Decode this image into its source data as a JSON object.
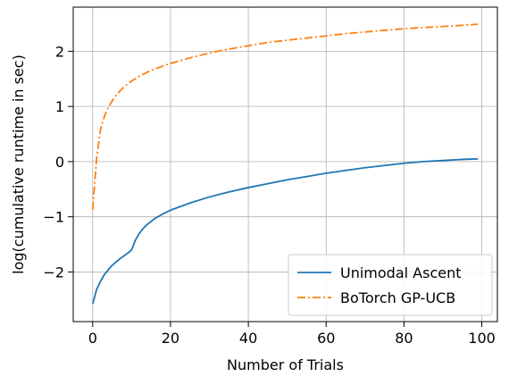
{
  "chart_data": {
    "type": "line",
    "title": "",
    "xlabel": "Number of Trials",
    "ylabel": "log(cumulative runtime in sec)",
    "xlim": [
      -5,
      104
    ],
    "ylim": [
      -2.9,
      2.8
    ],
    "xticks": [
      0,
      20,
      40,
      60,
      80,
      100
    ],
    "yticks": [
      -2,
      -1,
      0,
      1,
      2
    ],
    "xtick_labels": [
      "0",
      "20",
      "40",
      "60",
      "80",
      "100"
    ],
    "ytick_labels": [
      "−2",
      "−1",
      "0",
      "1",
      "2"
    ],
    "grid": true,
    "legend_position": "lower-right",
    "series": [
      {
        "name": "Unimodal Ascent",
        "color": "#1f77b4",
        "style": "solid",
        "x": [
          0,
          1,
          2,
          3,
          4,
          5,
          6,
          7,
          8,
          9,
          10,
          11,
          12,
          13,
          14,
          16,
          18,
          20,
          25,
          30,
          35,
          40,
          45,
          50,
          55,
          60,
          65,
          70,
          75,
          80,
          85,
          90,
          95,
          99
        ],
        "y": [
          -2.58,
          -2.32,
          -2.17,
          -2.05,
          -1.96,
          -1.88,
          -1.82,
          -1.76,
          -1.71,
          -1.66,
          -1.6,
          -1.42,
          -1.3,
          -1.21,
          -1.14,
          -1.03,
          -0.95,
          -0.88,
          -0.75,
          -0.64,
          -0.55,
          -0.47,
          -0.4,
          -0.33,
          -0.27,
          -0.21,
          -0.16,
          -0.11,
          -0.07,
          -0.03,
          0.0,
          0.02,
          0.04,
          0.05
        ]
      },
      {
        "name": "BoTorch GP-UCB",
        "color": "#ff7f0e",
        "style": "dashdot",
        "x": [
          0,
          1,
          2,
          3,
          4,
          5,
          6,
          7,
          8,
          9,
          10,
          12,
          14,
          16,
          18,
          20,
          25,
          30,
          35,
          40,
          45,
          50,
          55,
          60,
          65,
          70,
          75,
          80,
          85,
          90,
          95,
          99
        ],
        "y": [
          -0.87,
          0.05,
          0.58,
          0.82,
          0.98,
          1.1,
          1.2,
          1.28,
          1.35,
          1.41,
          1.46,
          1.55,
          1.62,
          1.68,
          1.73,
          1.78,
          1.88,
          1.97,
          2.04,
          2.1,
          2.16,
          2.2,
          2.24,
          2.28,
          2.32,
          2.35,
          2.38,
          2.41,
          2.43,
          2.45,
          2.47,
          2.49
        ]
      }
    ]
  }
}
